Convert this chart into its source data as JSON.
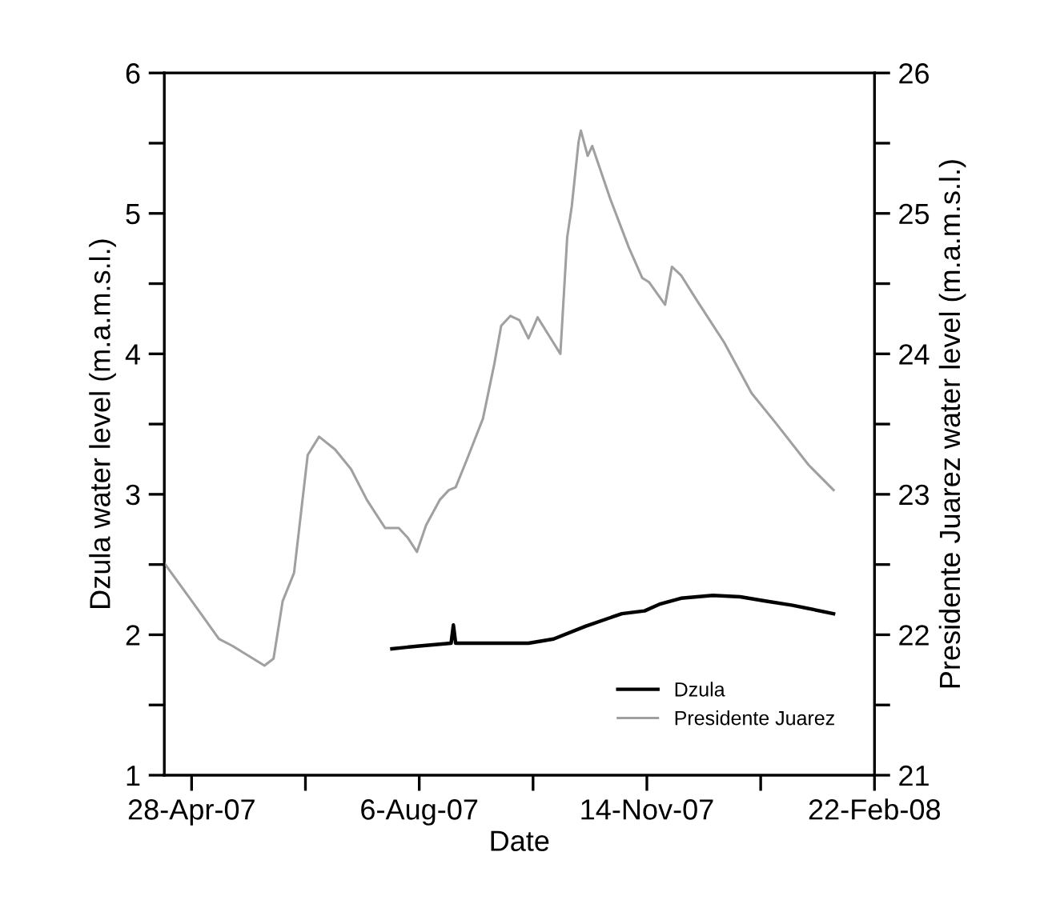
{
  "chart_data": {
    "type": "line",
    "xlabel": "Date",
    "ylabel": "Dzula water level (m.a.m.s.l.)",
    "y2label": "Presidente Juarez water level (m.a.m.s.l.)",
    "xlim": [
      "2007-04-16",
      "2008-02-22"
    ],
    "xticks": [
      {
        "value": "2007-04-28",
        "label": "28-Apr-07"
      },
      {
        "value": "2007-06-17",
        "label": null
      },
      {
        "value": "2007-08-06",
        "label": "6-Aug-07"
      },
      {
        "value": "2007-09-25",
        "label": null
      },
      {
        "value": "2007-11-14",
        "label": "14-Nov-07"
      },
      {
        "value": "2008-01-03",
        "label": null
      },
      {
        "value": "2008-02-22",
        "label": "22-Feb-08"
      }
    ],
    "ylim": [
      1,
      6
    ],
    "yticks": [
      1,
      {
        "value": 1.5,
        "label": null
      },
      2,
      {
        "value": 2.5,
        "label": null
      },
      3,
      {
        "value": 3.5,
        "label": null
      },
      4,
      {
        "value": 4.5,
        "label": null
      },
      5,
      {
        "value": 5.5,
        "label": null
      },
      6
    ],
    "y2lim": [
      21,
      26
    ],
    "y2ticks": [
      21,
      {
        "value": 21.5,
        "label": null
      },
      22,
      {
        "value": 22.5,
        "label": null
      },
      23,
      {
        "value": 23.5,
        "label": null
      },
      24,
      {
        "value": 24.5,
        "label": null
      },
      25,
      {
        "value": 25.5,
        "label": null
      },
      26
    ],
    "grid": false,
    "legend": "bottom right",
    "marker": "none",
    "line_style": "solid",
    "series": [
      {
        "name": "Dzula",
        "color": "#000000",
        "x": [
          "2007-07-25",
          "2007-08-06",
          "2007-08-20",
          "2007-08-21",
          "2007-08-22",
          "2007-09-16",
          "2007-09-23",
          "2007-10-04",
          "2007-10-18",
          "2007-11-03",
          "2007-11-13",
          "2007-11-20",
          "2007-11-29",
          "2007-12-13",
          "2007-12-25",
          "2008-01-05",
          "2008-01-17",
          "2008-02-04"
        ],
        "values": [
          1.9,
          1.92,
          1.94,
          2.07,
          1.94,
          1.94,
          1.94,
          1.97,
          2.06,
          2.15,
          2.17,
          2.22,
          2.26,
          2.28,
          2.27,
          2.24,
          2.21,
          2.15
        ]
      },
      {
        "name": "Presidente Juarez",
        "color": "#a0a0a0",
        "axis": "y2",
        "x": [
          "2007-04-16",
          "2007-04-29",
          "2007-05-10",
          "2007-05-16",
          "2007-05-30",
          "2007-06-03",
          "2007-06-07",
          "2007-06-12",
          "2007-06-18",
          "2007-06-23",
          "2007-06-30",
          "2007-07-07",
          "2007-07-14",
          "2007-07-22",
          "2007-07-28",
          "2007-08-01",
          "2007-08-05",
          "2007-08-09",
          "2007-08-15",
          "2007-08-19",
          "2007-08-22",
          "2007-08-27",
          "2007-09-03",
          "2007-09-08",
          "2007-09-11",
          "2007-09-15",
          "2007-09-19",
          "2007-09-23",
          "2007-09-27",
          "2007-10-02",
          "2007-10-07",
          "2007-10-10",
          "2007-10-12",
          "2007-10-15",
          "2007-10-16",
          "2007-10-19",
          "2007-10-21",
          "2007-10-29",
          "2007-11-06",
          "2007-11-12",
          "2007-11-15",
          "2007-11-22",
          "2007-11-25",
          "2007-11-29",
          "2007-12-06",
          "2007-12-18",
          "2007-12-30",
          "2008-01-10",
          "2008-01-24",
          "2008-02-04"
        ],
        "values": [
          22.51,
          22.22,
          21.97,
          21.92,
          21.78,
          21.83,
          22.24,
          22.44,
          23.28,
          23.41,
          23.32,
          23.18,
          22.96,
          22.76,
          22.76,
          22.69,
          22.59,
          22.78,
          22.96,
          23.03,
          23.05,
          23.25,
          23.54,
          23.93,
          24.2,
          24.27,
          24.24,
          24.11,
          24.26,
          24.13,
          24.0,
          24.83,
          25.05,
          25.51,
          25.59,
          25.41,
          25.48,
          25.1,
          24.76,
          24.54,
          24.51,
          24.35,
          24.62,
          24.56,
          24.38,
          24.08,
          23.72,
          23.5,
          23.21,
          23.03
        ]
      }
    ]
  }
}
